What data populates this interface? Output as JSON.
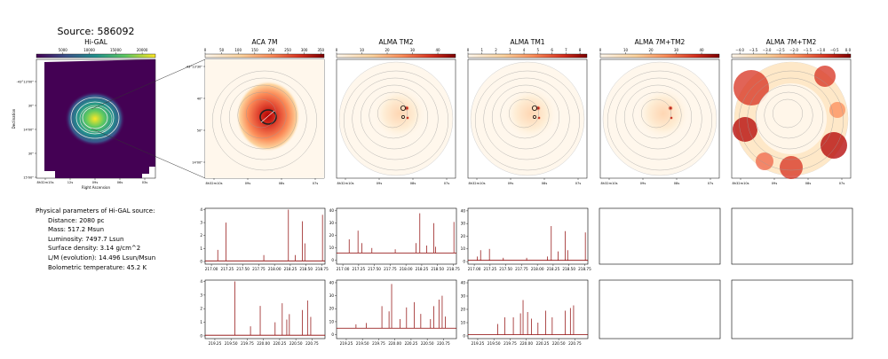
{
  "source_title": "Source: 586092",
  "higal": {
    "title": "Hi-GAL",
    "colorbar_ticks": [
      "5000",
      "10000",
      "15000",
      "20000"
    ],
    "colorbar_values": [
      5000,
      10000,
      15000,
      20000
    ],
    "colorbar_range": [
      0,
      22500
    ],
    "xlabel": "Right Ascension",
    "ylabel": "Declination",
    "x_ticks": [
      "8h32m15s",
      "12s",
      "09s",
      "06s",
      "03s"
    ],
    "y_ticks": [
      "-43°13'00\"",
      "30\"",
      "14'00\"",
      "30\"",
      "15'00\""
    ]
  },
  "panels": [
    {
      "title": "ACA 7M",
      "cbar_ticks": [
        "0",
        "50",
        "100",
        "150",
        "200",
        "250",
        "300",
        "350"
      ],
      "cbar_values": [
        0,
        50,
        100,
        150,
        200,
        250,
        300,
        350
      ],
      "cbar_range": [
        0,
        360
      ],
      "cmap": "orange-red",
      "x_ticks": [
        "8h32m10s",
        "09s",
        "08s",
        "07s"
      ],
      "y_ticks": [
        "-43°13'30\"",
        "40\"",
        "50\"",
        "14'00\""
      ]
    },
    {
      "title": "ALMA TM2",
      "cbar_ticks": [
        "0",
        "10",
        "20",
        "30",
        "40"
      ],
      "cbar_values": [
        0,
        10,
        20,
        30,
        40
      ],
      "cbar_range": [
        0,
        47
      ],
      "cmap": "orange-red",
      "x_ticks": [
        "8h32m10s",
        "09s",
        "08s",
        "07s"
      ],
      "y_ticks": []
    },
    {
      "title": "ALMA TM1",
      "cbar_ticks": [
        "0",
        "1",
        "2",
        "3",
        "4",
        "5",
        "6",
        "7",
        "8"
      ],
      "cbar_values": [
        0,
        1,
        2,
        3,
        4,
        5,
        6,
        7,
        8
      ],
      "cbar_range": [
        0,
        8.5
      ],
      "cmap": "orange-red",
      "x_ticks": [
        "8h32m10s",
        "09s",
        "08s",
        "07s"
      ],
      "y_ticks": []
    },
    {
      "title": "ALMA 7M+TM2",
      "cbar_ticks": [
        "0",
        "10",
        "20",
        "30",
        "40"
      ],
      "cbar_values": [
        0,
        10,
        20,
        30,
        40
      ],
      "cbar_range": [
        0,
        47
      ],
      "cmap": "orange-red",
      "x_ticks": [
        "8h32m10s",
        "09s",
        "08s",
        "07s"
      ],
      "y_ticks": []
    },
    {
      "title": "ALMA 7M+TM2",
      "cbar_ticks": [
        "−4.0",
        "−3.5",
        "−3.0",
        "−2.5",
        "−2.0",
        "−1.5",
        "−1.0",
        "−0.5",
        "0.0"
      ],
      "cbar_values": [
        -4.0,
        -3.5,
        -3.0,
        -2.5,
        -2.0,
        -1.5,
        -1.0,
        -0.5,
        0.0
      ],
      "cbar_range": [
        -4.3,
        0.1
      ],
      "cmap": "orange-red",
      "x_ticks": [
        "8h32m10s",
        "09s",
        "08s",
        "07s"
      ],
      "y_ticks": []
    }
  ],
  "physical_params": {
    "heading": "Physical parameters of Hi-GAL source:",
    "lines": [
      "Distance: 2080 pc",
      "Mass: 517.2 Msun",
      "Luminosity: 7497.7 Lsun",
      "Surface density: 3.14 g/cm^2",
      "L/M (evolution): 14.496 Lsun/Msun",
      "Bolometric temperature: 45.2 K"
    ]
  },
  "chart_data": [
    {
      "type": "line",
      "panel": "ACA 7M spectrum, upper band",
      "xlim": [
        216.9,
        218.8
      ],
      "x_ticks": [
        217.0,
        217.25,
        217.5,
        217.75,
        218.0,
        218.25,
        218.5,
        218.75
      ],
      "x_tick_labels": [
        "217.00",
        "217.25",
        "217.50",
        "217.75",
        "218.00",
        "218.25",
        "218.50",
        "218.75"
      ],
      "ylim": [
        -0.2,
        4.1
      ],
      "y_ticks": [
        0,
        1,
        2,
        3,
        4
      ],
      "y_tick_labels": [
        "0",
        "1",
        "2",
        "3",
        "4"
      ],
      "baseline": 0.05,
      "peaks": [
        {
          "x": 217.1,
          "y": 0.9
        },
        {
          "x": 217.23,
          "y": 3.0
        },
        {
          "x": 217.83,
          "y": 0.5
        },
        {
          "x": 218.22,
          "y": 4.0
        },
        {
          "x": 218.33,
          "y": 0.5
        },
        {
          "x": 218.44,
          "y": 3.1
        },
        {
          "x": 218.48,
          "y": 1.4
        },
        {
          "x": 218.76,
          "y": 3.6
        }
      ]
    },
    {
      "type": "line",
      "panel": "ALMA TM2 spectrum, upper band",
      "xlim": [
        216.9,
        218.8
      ],
      "x_ticks": [
        217.0,
        217.25,
        217.5,
        217.75,
        218.0,
        218.25,
        218.5,
        218.75
      ],
      "x_tick_labels": [
        "217.00",
        "217.25",
        "217.50",
        "217.75",
        "218.00",
        "218.25",
        "218.50",
        "218.75"
      ],
      "ylim": [
        -3,
        42
      ],
      "y_ticks": [
        0,
        10,
        20,
        30,
        40
      ],
      "y_tick_labels": [
        "0",
        "10",
        "20",
        "30",
        "40"
      ],
      "baseline": 6,
      "peaks": [
        {
          "x": 217.1,
          "y": 17
        },
        {
          "x": 217.24,
          "y": 24
        },
        {
          "x": 217.3,
          "y": 14
        },
        {
          "x": 217.46,
          "y": 10
        },
        {
          "x": 217.83,
          "y": 9
        },
        {
          "x": 218.16,
          "y": 14
        },
        {
          "x": 218.22,
          "y": 38
        },
        {
          "x": 218.33,
          "y": 12
        },
        {
          "x": 218.44,
          "y": 30
        },
        {
          "x": 218.47,
          "y": 11
        },
        {
          "x": 218.76,
          "y": 31
        }
      ]
    },
    {
      "type": "line",
      "panel": "ALMA TM1 spectrum, upper band",
      "xlim": [
        216.9,
        218.8
      ],
      "x_ticks": [
        217.0,
        217.25,
        217.5,
        217.75,
        218.0,
        218.25,
        218.5,
        218.75
      ],
      "x_tick_labels": [
        "217.00",
        "217.25",
        "217.50",
        "217.75",
        "218.00",
        "218.25",
        "218.50",
        "218.75"
      ],
      "ylim": [
        -2,
        42
      ],
      "y_ticks": [
        0,
        10,
        20,
        30,
        40
      ],
      "y_tick_labels": [
        "0",
        "10",
        "20",
        "30",
        "40"
      ],
      "baseline": 1,
      "peaks": [
        {
          "x": 217.05,
          "y": 4
        },
        {
          "x": 217.1,
          "y": 9
        },
        {
          "x": 217.24,
          "y": 10
        },
        {
          "x": 217.46,
          "y": 3
        },
        {
          "x": 217.83,
          "y": 3
        },
        {
          "x": 218.16,
          "y": 4
        },
        {
          "x": 218.22,
          "y": 28
        },
        {
          "x": 218.33,
          "y": 8
        },
        {
          "x": 218.44,
          "y": 24
        },
        {
          "x": 218.48,
          "y": 9
        },
        {
          "x": 218.76,
          "y": 23
        }
      ]
    },
    {
      "type": "line",
      "panel": "ACA 7M spectrum, lower band",
      "xlim": [
        219.1,
        220.95
      ],
      "x_ticks": [
        219.25,
        219.5,
        219.75,
        220.0,
        220.25,
        220.5,
        220.75
      ],
      "x_tick_labels": [
        "219.25",
        "219.50",
        "219.75",
        "220.00",
        "220.25",
        "220.50",
        "220.75"
      ],
      "ylim": [
        -0.2,
        4.1
      ],
      "y_ticks": [
        0,
        1,
        2,
        3,
        4
      ],
      "y_tick_labels": [
        "0",
        "1",
        "2",
        "3",
        "4"
      ],
      "baseline": 0.05,
      "peaks": [
        {
          "x": 219.56,
          "y": 4.0
        },
        {
          "x": 219.8,
          "y": 0.7
        },
        {
          "x": 219.95,
          "y": 2.2
        },
        {
          "x": 220.18,
          "y": 1.0
        },
        {
          "x": 220.29,
          "y": 2.4
        },
        {
          "x": 220.36,
          "y": 1.2
        },
        {
          "x": 220.4,
          "y": 1.6
        },
        {
          "x": 220.6,
          "y": 1.9
        },
        {
          "x": 220.68,
          "y": 2.6
        },
        {
          "x": 220.73,
          "y": 1.4
        }
      ]
    },
    {
      "type": "line",
      "panel": "ALMA TM2 spectrum, lower band",
      "xlim": [
        219.1,
        220.95
      ],
      "x_ticks": [
        219.25,
        219.5,
        219.75,
        220.0,
        220.25,
        220.5,
        220.75
      ],
      "x_tick_labels": [
        "219.25",
        "219.50",
        "219.75",
        "220.00",
        "220.25",
        "220.50",
        "220.75"
      ],
      "ylim": [
        -3,
        42
      ],
      "y_ticks": [
        0,
        10,
        20,
        30,
        40
      ],
      "y_tick_labels": [
        "0",
        "10",
        "20",
        "30",
        "40"
      ],
      "baseline": 5,
      "peaks": [
        {
          "x": 219.4,
          "y": 8
        },
        {
          "x": 219.56,
          "y": 9
        },
        {
          "x": 219.8,
          "y": 22
        },
        {
          "x": 219.91,
          "y": 18
        },
        {
          "x": 219.95,
          "y": 39
        },
        {
          "x": 220.08,
          "y": 12
        },
        {
          "x": 220.18,
          "y": 21
        },
        {
          "x": 220.3,
          "y": 25
        },
        {
          "x": 220.4,
          "y": 16
        },
        {
          "x": 220.55,
          "y": 12
        },
        {
          "x": 220.6,
          "y": 22
        },
        {
          "x": 220.68,
          "y": 27
        },
        {
          "x": 220.73,
          "y": 30
        },
        {
          "x": 220.78,
          "y": 14
        }
      ]
    },
    {
      "type": "line",
      "panel": "ALMA TM1 spectrum, lower band",
      "xlim": [
        219.1,
        220.95
      ],
      "x_ticks": [
        219.25,
        219.5,
        219.75,
        220.0,
        220.25,
        220.5,
        220.75
      ],
      "x_tick_labels": [
        "219.25",
        "219.50",
        "219.75",
        "220.00",
        "220.25",
        "220.50",
        "220.75"
      ],
      "ylim": [
        -2,
        42
      ],
      "y_ticks": [
        0,
        10,
        20,
        30,
        40
      ],
      "y_tick_labels": [
        "0",
        "10",
        "20",
        "30",
        "40"
      ],
      "baseline": 1,
      "peaks": [
        {
          "x": 219.56,
          "y": 9
        },
        {
          "x": 219.67,
          "y": 14
        },
        {
          "x": 219.8,
          "y": 14
        },
        {
          "x": 219.91,
          "y": 17
        },
        {
          "x": 219.95,
          "y": 27
        },
        {
          "x": 220.02,
          "y": 18
        },
        {
          "x": 220.08,
          "y": 13
        },
        {
          "x": 220.18,
          "y": 10
        },
        {
          "x": 220.3,
          "y": 19
        },
        {
          "x": 220.4,
          "y": 14
        },
        {
          "x": 220.6,
          "y": 19
        },
        {
          "x": 220.68,
          "y": 21
        },
        {
          "x": 220.73,
          "y": 23
        }
      ]
    }
  ]
}
